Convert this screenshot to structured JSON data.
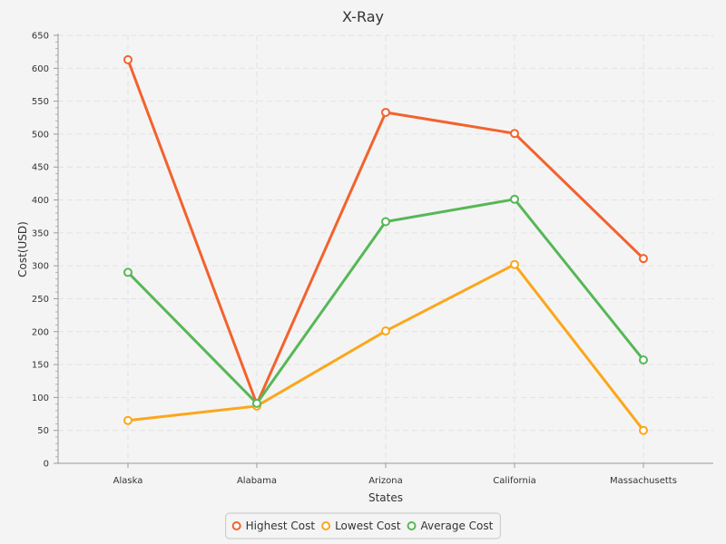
{
  "chart_data": {
    "type": "line",
    "title": "X-Ray",
    "xlabel": "States",
    "ylabel": "Cost(USD)",
    "categories": [
      "Alaska",
      "Alabama",
      "Arizona",
      "California",
      "Massachusetts"
    ],
    "ylim": [
      0,
      650
    ],
    "yticks": [
      0,
      50,
      100,
      150,
      200,
      250,
      300,
      350,
      400,
      450,
      500,
      550,
      600,
      650
    ],
    "grid": true,
    "legend_position": "bottom-center",
    "series": [
      {
        "name": "Highest Cost",
        "color": "#f3622d",
        "values": [
          613,
          90,
          533,
          501,
          311
        ]
      },
      {
        "name": "Lowest Cost",
        "color": "#fba71b",
        "values": [
          65,
          87,
          201,
          302,
          50
        ]
      },
      {
        "name": "Average Cost",
        "color": "#57b757",
        "values": [
          290,
          91,
          367,
          401,
          157
        ]
      }
    ]
  }
}
